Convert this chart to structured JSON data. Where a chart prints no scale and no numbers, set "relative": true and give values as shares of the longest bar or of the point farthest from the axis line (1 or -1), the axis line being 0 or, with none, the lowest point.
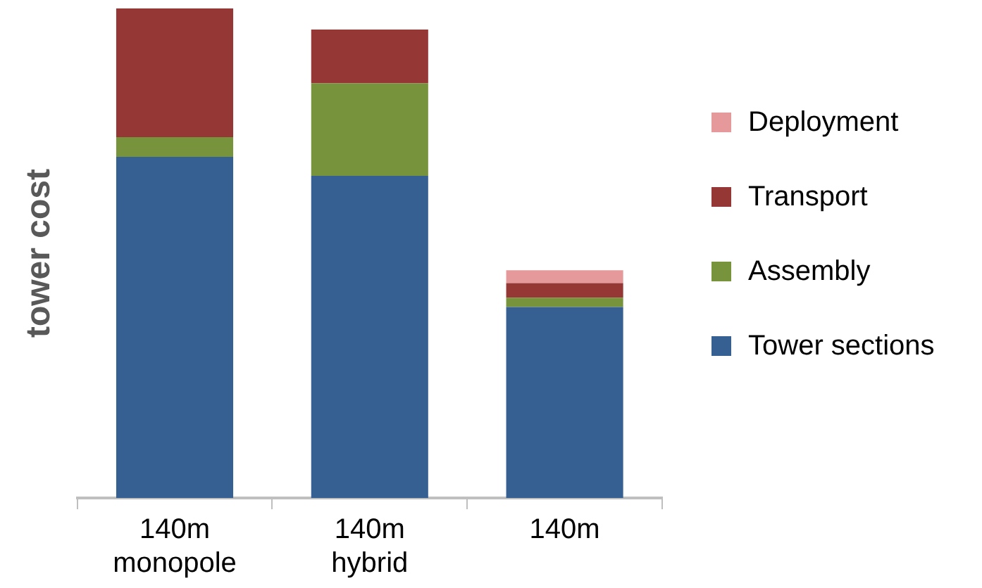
{
  "chart_data": {
    "type": "bar",
    "stacked": true,
    "relative": true,
    "ylabel": "tower cost",
    "legend": "right",
    "categories": [
      "140m monopole",
      "140m hybrid",
      "140m"
    ],
    "series": [
      {
        "name": "Tower sections",
        "color": "#376092",
        "values": [
          0.697,
          0.658,
          0.39
        ]
      },
      {
        "name": "Assembly",
        "color": "#77933c",
        "values": [
          0.04,
          0.189,
          0.019
        ]
      },
      {
        "name": "Transport",
        "color": "#953735",
        "values": [
          0.263,
          0.11,
          0.03
        ]
      },
      {
        "name": "Deployment",
        "color": "#e6999a",
        "values": [
          0,
          0,
          0.026
        ]
      }
    ]
  }
}
